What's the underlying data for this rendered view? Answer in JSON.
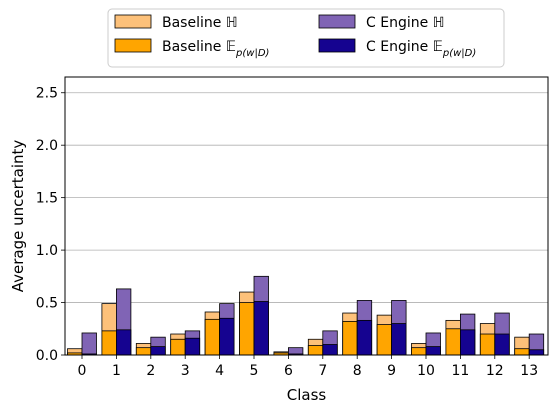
{
  "chart_data": {
    "type": "bar",
    "xlabel": "Class",
    "ylabel": "Average uncertainty",
    "categories": [
      "0",
      "1",
      "2",
      "3",
      "4",
      "5",
      "6",
      "7",
      "8",
      "9",
      "10",
      "11",
      "12",
      "13"
    ],
    "ylim": [
      0,
      2.65
    ],
    "yticks": [
      "0.0",
      "0.5",
      "1.0",
      "1.5",
      "2.0",
      "2.5"
    ],
    "ytick_values": [
      0,
      0.5,
      1.0,
      1.5,
      2.0,
      2.5
    ],
    "grid": "y",
    "legend_position": "top-center",
    "series": [
      {
        "name": "Baseline ℍ",
        "group": "baseline",
        "layer": "total",
        "color": "#fdc17a",
        "values": [
          0.06,
          0.49,
          0.11,
          0.2,
          0.41,
          0.6,
          0.03,
          0.15,
          0.4,
          0.38,
          0.11,
          0.33,
          0.3,
          0.17
        ]
      },
      {
        "name": "Baseline 𝔼",
        "subscript": "p(w|D)",
        "group": "baseline",
        "layer": "expected",
        "color": "#ffa500",
        "values": [
          0.02,
          0.23,
          0.07,
          0.15,
          0.34,
          0.5,
          0.02,
          0.09,
          0.32,
          0.29,
          0.07,
          0.25,
          0.2,
          0.06
        ]
      },
      {
        "name": "C Engine ℍ",
        "group": "cengine",
        "layer": "total",
        "color": "#8064b5",
        "values": [
          0.21,
          0.63,
          0.17,
          0.23,
          0.49,
          0.75,
          0.07,
          0.23,
          0.52,
          0.52,
          0.21,
          0.39,
          0.4,
          0.2
        ]
      },
      {
        "name": "C Engine 𝔼",
        "subscript": "p(w|D)",
        "group": "cengine",
        "layer": "expected",
        "color": "#150390",
        "values": [
          0.01,
          0.24,
          0.08,
          0.16,
          0.35,
          0.51,
          0.01,
          0.1,
          0.33,
          0.3,
          0.08,
          0.24,
          0.2,
          0.05
        ]
      }
    ]
  }
}
